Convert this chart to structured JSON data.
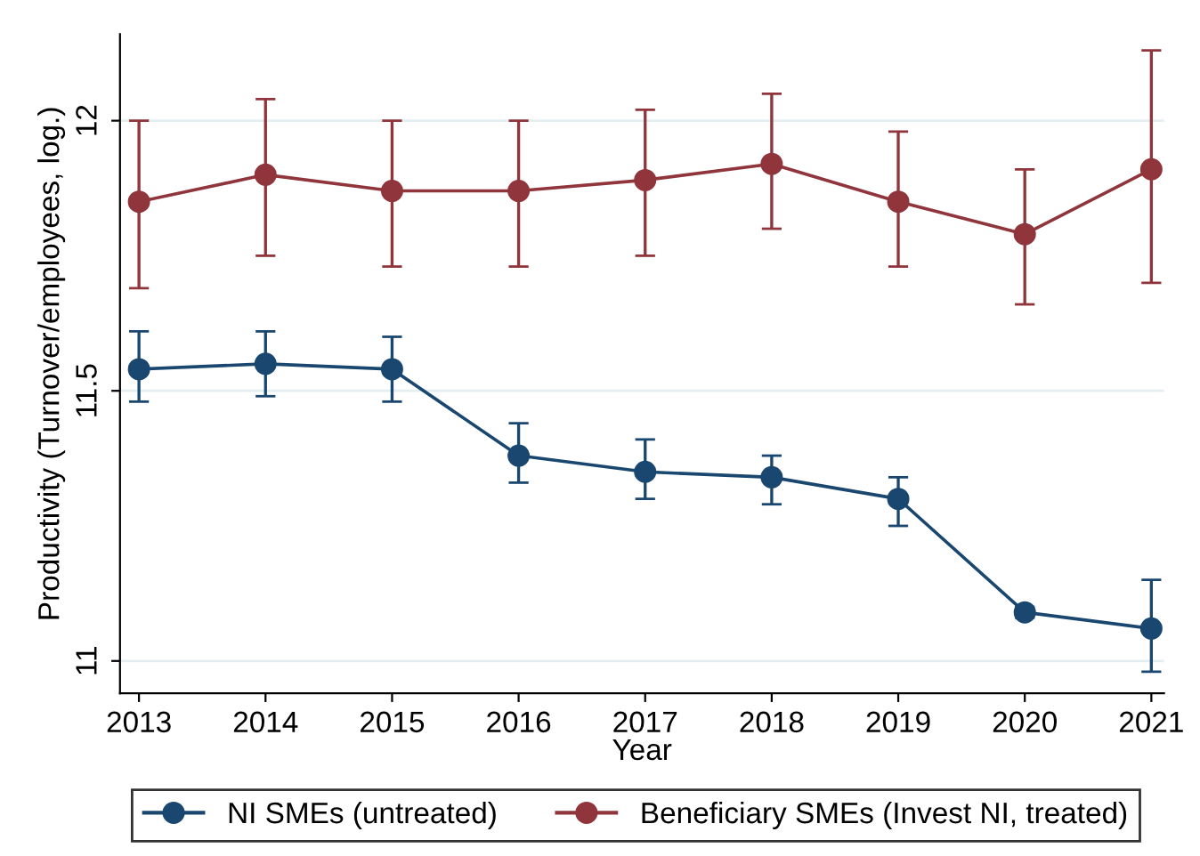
{
  "chart_data": {
    "type": "line",
    "xlabel": "Year",
    "ylabel": "Productivity (Turnover/employees, log.)",
    "x": [
      2013,
      2014,
      2015,
      2016,
      2017,
      2018,
      2019,
      2020,
      2021
    ],
    "xlim": [
      2012.85,
      2021.1
    ],
    "xticks": [
      2013,
      2014,
      2015,
      2016,
      2017,
      2018,
      2019,
      2020,
      2021
    ],
    "ylim": [
      10.94,
      12.16
    ],
    "yticks": [
      11,
      11.5,
      12
    ],
    "grid": "y",
    "legend": "bottom",
    "marker": "circle",
    "line_style": "solid",
    "series": [
      {
        "name": "NI SMEs (untreated)",
        "color": "#1a476f",
        "values": [
          11.54,
          11.55,
          11.54,
          11.38,
          11.35,
          11.34,
          11.3,
          11.09,
          11.06
        ],
        "errors": [
          [
            11.48,
            11.61
          ],
          [
            11.49,
            11.61
          ],
          [
            11.48,
            11.6
          ],
          [
            11.33,
            11.44
          ],
          [
            11.3,
            11.41
          ],
          [
            11.29,
            11.38
          ],
          [
            11.25,
            11.34
          ],
          [
            11.08,
            11.1
          ],
          [
            10.98,
            11.15
          ]
        ]
      },
      {
        "name": "Beneficiary SMEs (Invest NI, treated)",
        "color": "#90353b",
        "values": [
          11.85,
          11.9,
          11.87,
          11.87,
          11.89,
          11.92,
          11.85,
          11.79,
          11.91
        ],
        "errors": [
          [
            11.69,
            12.0
          ],
          [
            11.75,
            12.04
          ],
          [
            11.73,
            12.0
          ],
          [
            11.73,
            12.0
          ],
          [
            11.75,
            12.02
          ],
          [
            11.8,
            12.05
          ],
          [
            11.73,
            11.98
          ],
          [
            11.66,
            11.91
          ],
          [
            11.7,
            12.13
          ]
        ]
      }
    ]
  }
}
